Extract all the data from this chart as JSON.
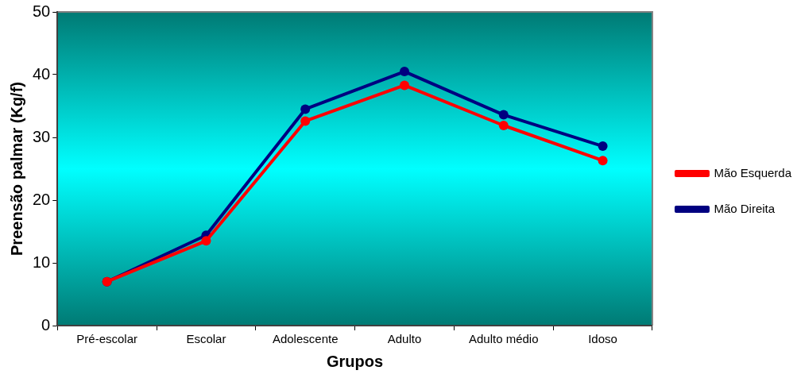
{
  "chart_data": {
    "type": "line",
    "xlabel": "Grupos",
    "ylabel": "Preensão palmar (Kg/f)",
    "categories": [
      "Pré-escolar",
      "Escolar",
      "Adolescente",
      "Adulto",
      "Adulto médio",
      "Idoso"
    ],
    "series": [
      {
        "name": "Mão Direita",
        "color": "#000080",
        "values": [
          7.0,
          14.4,
          34.5,
          40.5,
          33.6,
          28.6
        ]
      },
      {
        "name": "Mão Esquerda",
        "color": "#ff0000",
        "values": [
          7.0,
          13.5,
          32.6,
          38.3,
          31.9,
          26.3
        ]
      }
    ],
    "ylim": [
      0,
      50
    ],
    "yticks": [
      0,
      10,
      20,
      30,
      40,
      50
    ],
    "grid": false,
    "legend": "right",
    "marker": "circle",
    "line_style": "solid"
  }
}
